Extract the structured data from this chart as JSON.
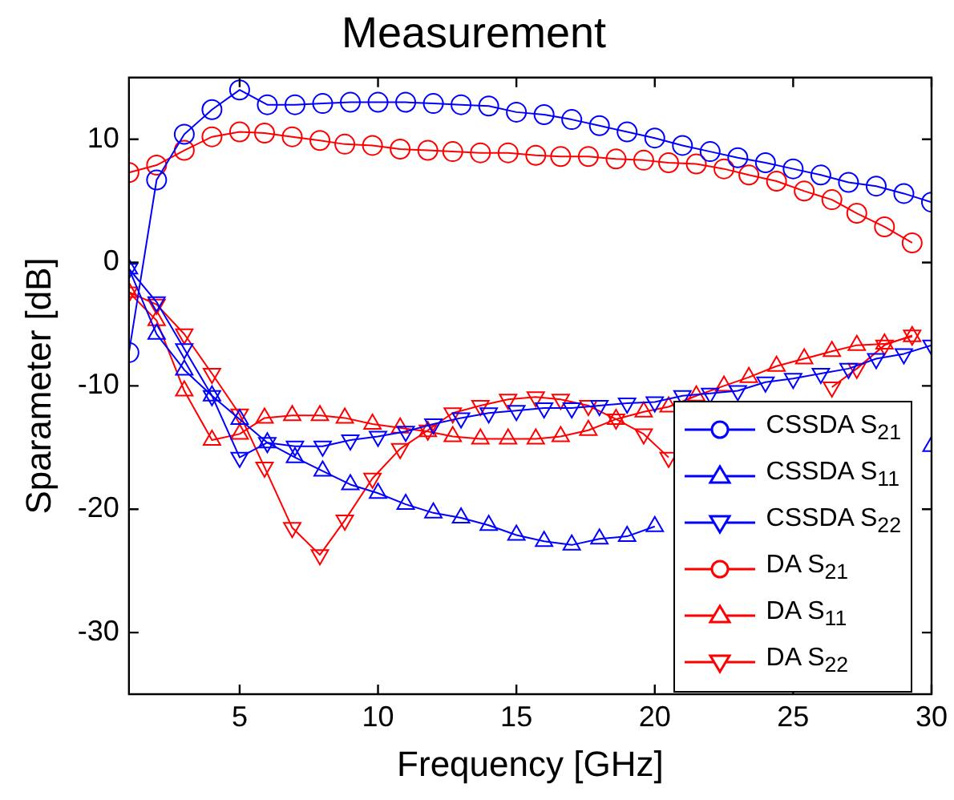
{
  "chart_data": {
    "type": "line",
    "title": "Measurement",
    "xlabel": "Frequency [GHz]",
    "ylabel": "Sparameter [dB]",
    "xlim": [
      1,
      30
    ],
    "xticks": [
      5,
      10,
      15,
      20,
      25,
      30
    ],
    "ylim": [
      -35,
      15
    ],
    "yticks": [
      -30,
      -20,
      -10,
      0,
      10
    ],
    "grid": false,
    "legend": "bottom right",
    "line_style": "solid",
    "series": [
      {
        "name": "CSSDA S$_{21}$",
        "color": "#0000ff",
        "marker": "circle",
        "x": [
          1,
          2,
          3,
          4,
          5,
          6,
          7,
          8,
          9,
          10,
          11,
          12,
          13,
          14,
          15,
          16,
          17,
          18,
          19,
          20,
          21,
          22,
          23,
          24,
          25,
          26,
          27,
          28,
          29,
          30
        ],
        "values": [
          -7.3,
          6.7,
          10.4,
          12.4,
          14.0,
          12.8,
          12.8,
          12.9,
          13.0,
          13.0,
          13.0,
          12.9,
          12.8,
          12.7,
          12.2,
          12.0,
          11.6,
          11.1,
          10.6,
          10.1,
          9.5,
          9.0,
          8.5,
          8.1,
          7.6,
          7.1,
          6.5,
          6.2,
          5.6,
          4.9
        ]
      },
      {
        "name": "CSSDA S$_{11}$",
        "color": "#0000ff",
        "marker": "triangle",
        "x": [
          1,
          2,
          3,
          4,
          5,
          6,
          7,
          8,
          9,
          10,
          11,
          12,
          13,
          14,
          15,
          16,
          17,
          18,
          19,
          20,
          21,
          22,
          23,
          24,
          25,
          26,
          27,
          28,
          29,
          30
        ],
        "values": [
          -0.5,
          -5.8,
          -8.7,
          -10.8,
          -12.7,
          -14.6,
          -15.8,
          -16.9,
          -18.0,
          -18.7,
          -19.6,
          -20.3,
          -20.7,
          -21.3,
          -22.1,
          -22.6,
          -22.9,
          -22.4,
          -22.2,
          -21.4,
          null,
          null,
          null,
          null,
          null,
          null,
          null,
          null,
          null,
          -14.9
        ]
      },
      {
        "name": "CSSDA S$_{22}$",
        "color": "#0000ff",
        "marker": "triangle-down",
        "x": [
          1,
          2,
          3,
          4,
          5,
          6,
          7,
          8,
          9,
          10,
          11,
          12,
          13,
          14,
          15,
          16,
          17,
          18,
          19,
          20,
          21,
          22,
          23,
          24,
          25,
          26,
          27,
          28,
          29,
          30
        ],
        "values": [
          -0.5,
          -3.2,
          -7.0,
          -10.8,
          -15.8,
          -14.6,
          -14.9,
          -14.9,
          -14.4,
          -14.1,
          -13.7,
          -13.1,
          -12.6,
          -12.2,
          -12.0,
          -11.8,
          -11.8,
          -11.6,
          -11.4,
          -11.3,
          -10.8,
          -10.6,
          -10.4,
          -9.7,
          -9.4,
          -9.0,
          -8.6,
          -7.8,
          -7.4,
          -6.7
        ]
      },
      {
        "name": "DA S$_{21}$",
        "color": "#ff0000",
        "marker": "circle",
        "x": [
          1,
          2,
          3,
          4,
          5,
          5.9,
          6.9,
          7.9,
          8.8,
          9.8,
          10.8,
          11.8,
          12.7,
          13.7,
          14.7,
          15.7,
          16.6,
          17.6,
          18.6,
          19.6,
          20.5,
          21.5,
          22.5,
          23.4,
          24.4,
          25.4,
          26.4,
          27.3,
          28.3,
          29.3
        ],
        "values": [
          7.3,
          7.9,
          9.1,
          10.2,
          10.6,
          10.5,
          10.2,
          9.9,
          9.6,
          9.5,
          9.2,
          9.1,
          9.0,
          8.9,
          8.9,
          8.7,
          8.6,
          8.6,
          8.4,
          8.3,
          8.1,
          8.0,
          7.6,
          7.1,
          6.6,
          5.8,
          5.1,
          4.0,
          2.9,
          1.6
        ]
      },
      {
        "name": "DA S$_{11}$",
        "color": "#ff0000",
        "marker": "triangle",
        "x": [
          1,
          2,
          3,
          4,
          5,
          5.9,
          6.9,
          7.9,
          8.8,
          9.8,
          10.8,
          11.8,
          12.7,
          13.7,
          14.7,
          15.7,
          16.6,
          17.6,
          18.6,
          19.6,
          20.5,
          21.5,
          22.5,
          23.4,
          24.4,
          25.4,
          26.4,
          27.3,
          28.3,
          29.3
        ],
        "values": [
          -2.4,
          -4.7,
          -10.4,
          -14.4,
          -13.9,
          -12.6,
          -12.4,
          -12.4,
          -12.6,
          -13.1,
          -13.4,
          -13.7,
          -14.1,
          -14.3,
          -14.3,
          -14.3,
          -14.1,
          -13.6,
          -12.7,
          -12.1,
          -11.7,
          -10.8,
          -10.0,
          -9.3,
          -8.4,
          -7.8,
          -7.2,
          -6.7,
          -6.6,
          -6.0
        ]
      },
      {
        "name": "DA S$_{22}$",
        "color": "#ff0000",
        "marker": "triangle-down",
        "x": [
          1,
          2,
          3,
          4,
          5,
          5.9,
          6.9,
          7.9,
          8.8,
          9.8,
          10.8,
          11.8,
          12.7,
          13.7,
          14.7,
          15.7,
          16.6,
          17.6,
          18.6,
          19.6,
          20.5,
          21.5,
          22.5,
          23.4,
          24.4,
          25.4,
          26.4,
          27.3,
          28.3,
          29.3
        ],
        "values": [
          -2.4,
          -3.4,
          -5.8,
          -9.0,
          -12.3,
          -16.6,
          -21.5,
          -23.7,
          -20.9,
          -17.5,
          -15.1,
          -13.6,
          -12.2,
          -11.6,
          -11.1,
          -10.9,
          -11.1,
          -11.6,
          -12.7,
          -13.9,
          -15.8,
          null,
          null,
          null,
          null,
          null,
          -10.1,
          -8.6,
          -6.7,
          -5.9
        ]
      }
    ]
  }
}
